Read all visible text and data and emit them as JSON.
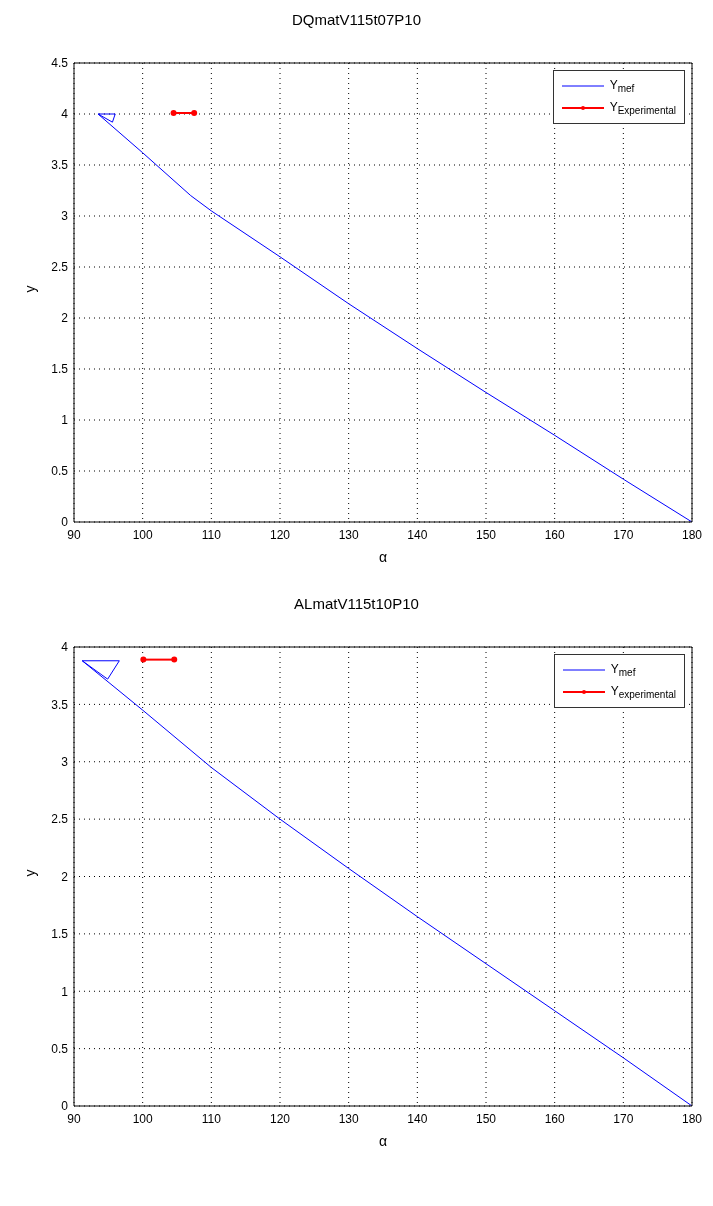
{
  "chart_data": [
    {
      "type": "line",
      "title": "DQmatV115t07P10",
      "xlabel": "α",
      "ylabel": "y",
      "xlim": [
        90,
        180
      ],
      "xticks": [
        90,
        100,
        110,
        120,
        130,
        140,
        150,
        160,
        170,
        180
      ],
      "ylim": [
        0,
        4.5
      ],
      "yticks": [
        0,
        0.5,
        1,
        1.5,
        2,
        2.5,
        3,
        3.5,
        4,
        4.5
      ],
      "grid": true,
      "legend": "top right",
      "series": [
        {
          "name": "Y$_{mef}$",
          "color": "#0000ff",
          "marker": "none",
          "x": [
            93.5,
            96,
            95.6,
            93.5,
            100,
            107,
            110,
            120,
            130,
            140,
            150,
            160,
            170,
            180
          ],
          "values": [
            4,
            4,
            3.92,
            4,
            3.62,
            3.2,
            3.05,
            2.6,
            2.14,
            1.7,
            1.27,
            0.85,
            0.42,
            0
          ]
        },
        {
          "name": "Y$_{Experimental}$",
          "color": "#ff0000",
          "marker": "circle",
          "x": [
            104.5,
            107.5
          ],
          "values": [
            4.01,
            4.01
          ]
        }
      ]
    },
    {
      "type": "line",
      "title": "ALmatV115t10P10",
      "xlabel": "α",
      "ylabel": "y",
      "xlim": [
        90,
        180
      ],
      "xticks": [
        90,
        100,
        110,
        120,
        130,
        140,
        150,
        160,
        170,
        180
      ],
      "ylim": [
        0,
        4
      ],
      "yticks": [
        0,
        0.5,
        1,
        1.5,
        2,
        2.5,
        3,
        3.5,
        4
      ],
      "grid": true,
      "legend": "top right",
      "series": [
        {
          "name": "Y$_{mef}$",
          "color": "#0000ff",
          "marker": "none",
          "x": [
            91.2,
            96.6,
            94.9,
            91.2,
            100,
            110,
            120,
            130,
            140,
            150,
            160,
            170,
            180
          ],
          "values": [
            3.88,
            3.88,
            3.72,
            3.88,
            3.45,
            2.95,
            2.5,
            2.07,
            1.65,
            1.24,
            0.83,
            0.42,
            0
          ]
        },
        {
          "name": "Y$_{experimental}$",
          "color": "#ff0000",
          "marker": "circle",
          "x": [
            100.1,
            104.6
          ],
          "values": [
            3.89,
            3.89
          ]
        }
      ]
    }
  ]
}
